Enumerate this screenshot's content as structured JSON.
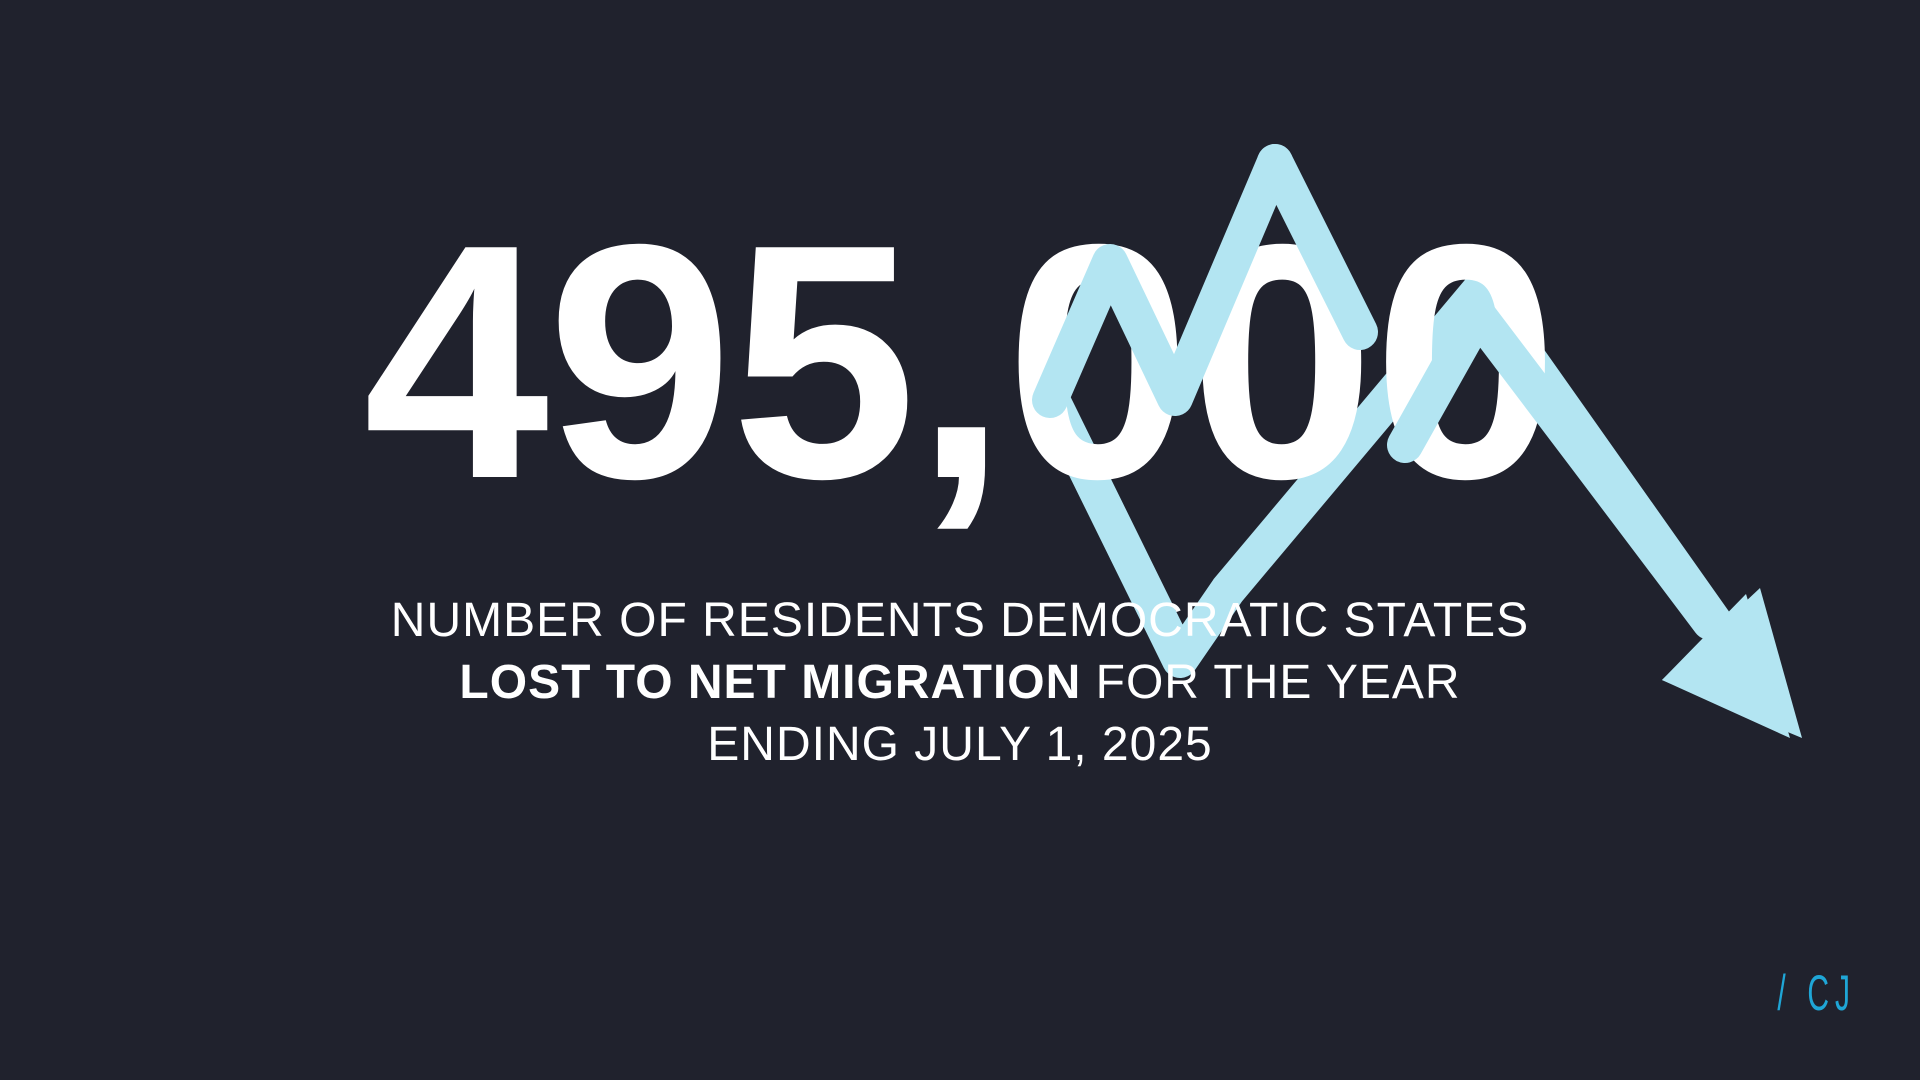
{
  "headline": {
    "number": "495,000"
  },
  "caption": {
    "line1": "NUMBER OF RESIDENTS DEMOCRATIC STATES",
    "line2_bold": "LOST TO NET MIGRATION",
    "line2_rest": " FOR THE YEAR",
    "line3": "ENDING JULY 1, 2025"
  },
  "logo": {
    "slash": "/",
    "text": "CJ"
  },
  "icons": {
    "trend": "downward-trend-arrow-icon"
  },
  "colors": {
    "background": "#20222d",
    "number": "#ffffff",
    "arrow": "#b3e5f2",
    "logo": "#1fa6d6"
  }
}
